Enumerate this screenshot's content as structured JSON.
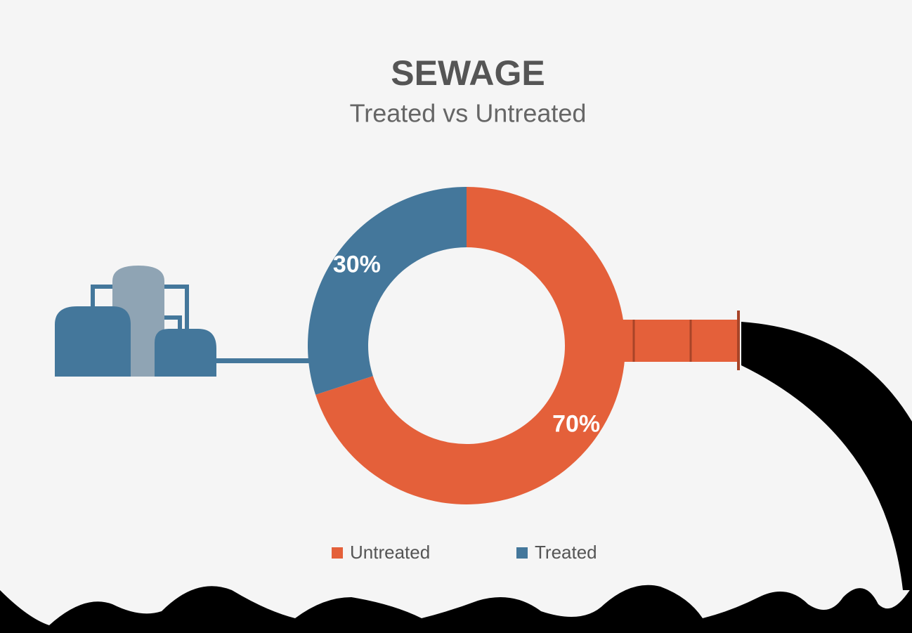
{
  "chart_data": {
    "type": "donut",
    "title": "SEWAGE",
    "subtitle": "Treated vs Untreated",
    "categories": [
      "Untreated",
      "Treated"
    ],
    "values": [
      70,
      30
    ],
    "value_labels": [
      "70%",
      "30%"
    ],
    "colors": [
      "#e4603a",
      "#44779b"
    ]
  }
}
